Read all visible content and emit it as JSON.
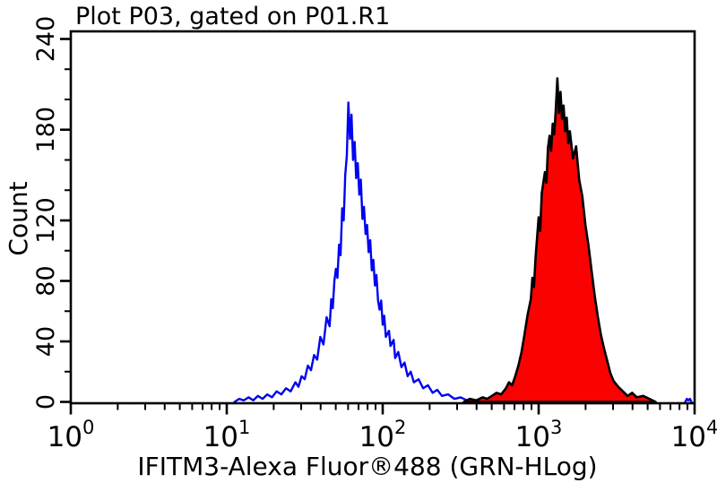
{
  "title": "Plot P03, gated on P01.R1",
  "axes": {
    "y": {
      "label": "Count",
      "major_ticks": [
        0,
        40,
        80,
        120,
        180,
        240
      ],
      "minor_ticks": [
        20,
        60,
        100,
        140,
        160,
        200,
        220
      ],
      "max": 245
    },
    "x": {
      "label": "IFITM3-Alexa Fluor®488 (GRN-HLog)",
      "decade_exponents": [
        0,
        1,
        2,
        3,
        4
      ],
      "minor_multiples": [
        2,
        3,
        4,
        5,
        6,
        7,
        8,
        9
      ]
    }
  },
  "colors": {
    "frame": "#000000",
    "blue_curve": "#0004f0",
    "red_fill": "#fa0202",
    "red_outline": "#000000",
    "text": "#000000"
  },
  "chart_data": {
    "type": "line",
    "title": "Plot P03, gated on P01.R1",
    "xlabel": "IFITM3-Alexa Fluor®488 (GRN-HLog)",
    "ylabel": "Count",
    "x_scale": "log10",
    "xlim": [
      1,
      10000
    ],
    "ylim": [
      0,
      245
    ],
    "grid": false,
    "legend": "none",
    "series": [
      {
        "name": "blue-open-histogram",
        "style": "open",
        "color": "#0004f0",
        "peak": {
          "x": 60,
          "count": 198
        },
        "points_log10x_count": [
          [
            1.05,
            0
          ],
          [
            1.08,
            2
          ],
          [
            1.11,
            1
          ],
          [
            1.14,
            3
          ],
          [
            1.17,
            1
          ],
          [
            1.2,
            4
          ],
          [
            1.23,
            2
          ],
          [
            1.26,
            5
          ],
          [
            1.29,
            3
          ],
          [
            1.32,
            7
          ],
          [
            1.35,
            5
          ],
          [
            1.38,
            9
          ],
          [
            1.41,
            7
          ],
          [
            1.44,
            13
          ],
          [
            1.46,
            10
          ],
          [
            1.48,
            17
          ],
          [
            1.5,
            15
          ],
          [
            1.52,
            24
          ],
          [
            1.54,
            21
          ],
          [
            1.56,
            31
          ],
          [
            1.58,
            28
          ],
          [
            1.6,
            43
          ],
          [
            1.62,
            38
          ],
          [
            1.64,
            56
          ],
          [
            1.66,
            50
          ],
          [
            1.67,
            68
          ],
          [
            1.68,
            62
          ],
          [
            1.69,
            80
          ],
          [
            1.7,
            88
          ],
          [
            1.71,
            82
          ],
          [
            1.72,
            104
          ],
          [
            1.73,
            97
          ],
          [
            1.74,
            128
          ],
          [
            1.75,
            120
          ],
          [
            1.76,
            150
          ],
          [
            1.77,
            163
          ],
          [
            1.78,
            198
          ],
          [
            1.79,
            174
          ],
          [
            1.8,
            190
          ],
          [
            1.81,
            160
          ],
          [
            1.82,
            172
          ],
          [
            1.83,
            148
          ],
          [
            1.84,
            158
          ],
          [
            1.85,
            137
          ],
          [
            1.86,
            147
          ],
          [
            1.87,
            121
          ],
          [
            1.88,
            129
          ],
          [
            1.89,
            111
          ],
          [
            1.9,
            117
          ],
          [
            1.91,
            99
          ],
          [
            1.92,
            107
          ],
          [
            1.93,
            87
          ],
          [
            1.94,
            94
          ],
          [
            1.95,
            77
          ],
          [
            1.96,
            84
          ],
          [
            1.97,
            67
          ],
          [
            1.98,
            61
          ],
          [
            1.99,
            67
          ],
          [
            2.0,
            51
          ],
          [
            2.01,
            57
          ],
          [
            2.02,
            43
          ],
          [
            2.04,
            47
          ],
          [
            2.05,
            37
          ],
          [
            2.07,
            41
          ],
          [
            2.08,
            29
          ],
          [
            2.1,
            33
          ],
          [
            2.12,
            23
          ],
          [
            2.14,
            26
          ],
          [
            2.16,
            17
          ],
          [
            2.18,
            20
          ],
          [
            2.2,
            13
          ],
          [
            2.23,
            15
          ],
          [
            2.26,
            9
          ],
          [
            2.29,
            11
          ],
          [
            2.32,
            6
          ],
          [
            2.35,
            8
          ],
          [
            2.38,
            4
          ],
          [
            2.42,
            5
          ],
          [
            2.46,
            2
          ],
          [
            2.5,
            3
          ],
          [
            2.54,
            1
          ],
          [
            2.58,
            0
          ]
        ]
      },
      {
        "name": "red-filled-histogram",
        "style": "filled",
        "color": "#000000",
        "fill": "#fa0202",
        "peak": {
          "x": 1300,
          "count": 214
        },
        "points_log10x_count": [
          [
            2.52,
            0
          ],
          [
            2.56,
            2
          ],
          [
            2.6,
            1
          ],
          [
            2.64,
            3
          ],
          [
            2.67,
            2
          ],
          [
            2.7,
            4
          ],
          [
            2.73,
            6
          ],
          [
            2.76,
            5
          ],
          [
            2.79,
            9
          ],
          [
            2.81,
            13
          ],
          [
            2.83,
            11
          ],
          [
            2.85,
            17
          ],
          [
            2.87,
            24
          ],
          [
            2.89,
            33
          ],
          [
            2.91,
            45
          ],
          [
            2.93,
            58
          ],
          [
            2.95,
            68
          ],
          [
            2.96,
            82
          ],
          [
            2.97,
            76
          ],
          [
            2.98,
            95
          ],
          [
            3.0,
            122
          ],
          [
            3.01,
            113
          ],
          [
            3.02,
            138
          ],
          [
            3.04,
            152
          ],
          [
            3.05,
            145
          ],
          [
            3.06,
            168
          ],
          [
            3.07,
            176
          ],
          [
            3.08,
            166
          ],
          [
            3.09,
            184
          ],
          [
            3.1,
            177
          ],
          [
            3.11,
            193
          ],
          [
            3.12,
            214
          ],
          [
            3.13,
            191
          ],
          [
            3.14,
            205
          ],
          [
            3.15,
            187
          ],
          [
            3.16,
            196
          ],
          [
            3.17,
            179
          ],
          [
            3.18,
            188
          ],
          [
            3.19,
            171
          ],
          [
            3.2,
            179
          ],
          [
            3.22,
            161
          ],
          [
            3.24,
            169
          ],
          [
            3.26,
            147
          ],
          [
            3.28,
            136
          ],
          [
            3.3,
            117
          ],
          [
            3.32,
            103
          ],
          [
            3.34,
            86
          ],
          [
            3.36,
            70
          ],
          [
            3.38,
            56
          ],
          [
            3.4,
            44
          ],
          [
            3.42,
            35
          ],
          [
            3.44,
            27
          ],
          [
            3.46,
            19
          ],
          [
            3.48,
            14
          ],
          [
            3.51,
            10
          ],
          [
            3.54,
            7
          ],
          [
            3.57,
            4
          ],
          [
            3.6,
            6
          ],
          [
            3.63,
            3
          ],
          [
            3.67,
            4
          ],
          [
            3.71,
            2
          ],
          [
            3.75,
            0
          ]
        ]
      },
      {
        "name": "blue-baseline-speck",
        "style": "open",
        "color": "#0004f0",
        "points_log10x_count": [
          [
            3.94,
            0
          ],
          [
            3.95,
            2
          ],
          [
            3.96,
            1
          ],
          [
            3.97,
            2
          ],
          [
            3.98,
            0
          ]
        ]
      }
    ]
  }
}
